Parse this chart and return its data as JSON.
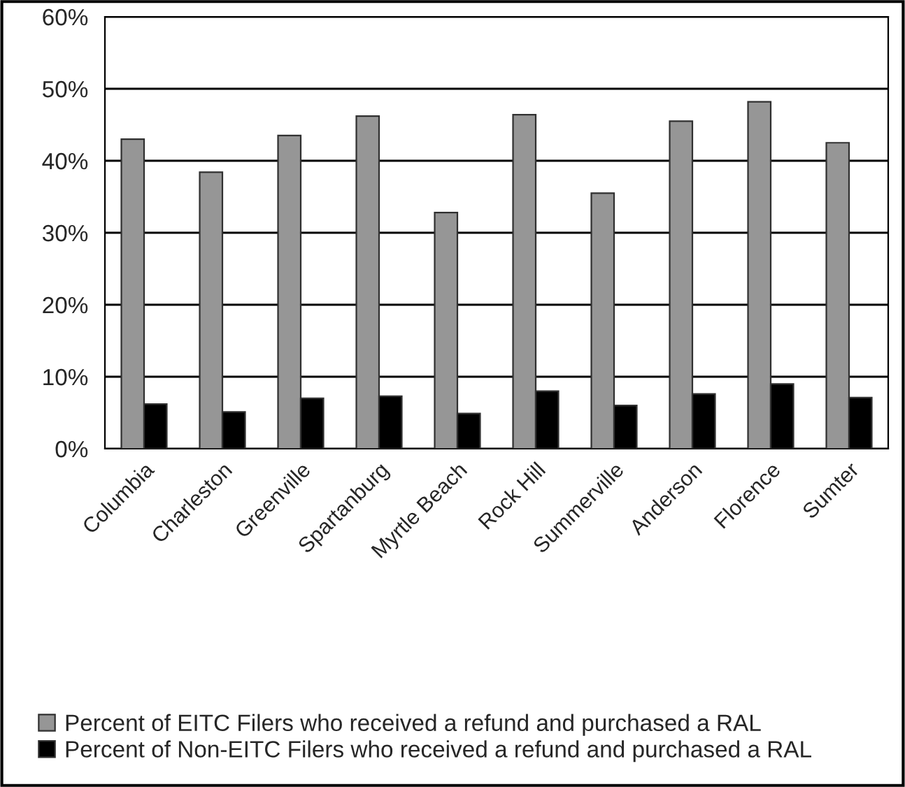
{
  "chart_data": {
    "type": "bar",
    "categories": [
      "Columbia",
      "Charleston",
      "Greenville",
      "Spartanburg",
      "Myrtle Beach",
      "Rock Hill",
      "Summerville",
      "Anderson",
      "Florence",
      "Sumter"
    ],
    "series": [
      {
        "name": "Percent of EITC Filers who received a refund and purchased a RAL",
        "color": "#969696",
        "values": [
          43.0,
          38.4,
          43.5,
          46.2,
          32.8,
          46.4,
          35.5,
          45.5,
          48.2,
          42.5
        ]
      },
      {
        "name": "Percent of Non-EITC Filers who received a refund and purchased a RAL",
        "color": "#000000",
        "values": [
          6.2,
          5.1,
          7.0,
          7.3,
          4.9,
          8.0,
          6.0,
          7.6,
          9.0,
          7.1
        ]
      }
    ],
    "ylim": [
      0,
      60
    ],
    "yticks": [
      {
        "value": 0,
        "label": "0%"
      },
      {
        "value": 10,
        "label": "10%"
      },
      {
        "value": 20,
        "label": "20%"
      },
      {
        "value": 30,
        "label": "30%"
      },
      {
        "value": 40,
        "label": "40%"
      },
      {
        "value": 50,
        "label": "50%"
      },
      {
        "value": 60,
        "label": "60%"
      }
    ],
    "grid": "y",
    "legend": "bottom"
  }
}
